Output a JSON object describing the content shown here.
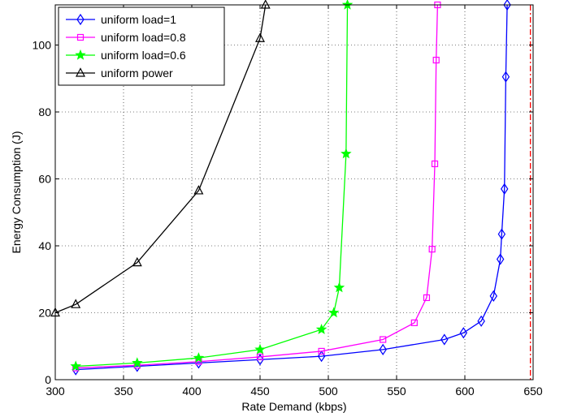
{
  "chart_data": {
    "type": "line",
    "xlabel": "Rate Demand (kbps)",
    "ylabel": "Energy Consumption (J)",
    "xlim": [
      300,
      650
    ],
    "ylim": [
      0,
      112
    ],
    "x_ticks": [
      300,
      350,
      400,
      450,
      500,
      550,
      600,
      650
    ],
    "y_ticks": [
      0,
      20,
      40,
      60,
      80,
      100
    ],
    "grid": true,
    "legend_position": "top-left",
    "threshold_line": {
      "x": 648,
      "color": "#ff0000",
      "style": "dash-dot"
    },
    "series": [
      {
        "name": "uniform load=1",
        "color": "#0000ff",
        "marker": "diamond",
        "x": [
          315,
          360,
          405,
          450,
          495,
          540,
          585,
          599,
          612,
          621,
          626,
          627,
          629,
          630,
          631
        ],
        "y": [
          3.0,
          4.0,
          5.0,
          6.0,
          7.0,
          9.0,
          12.0,
          14.0,
          17.5,
          25.0,
          36.0,
          43.5,
          57.0,
          90.5,
          112.0
        ]
      },
      {
        "name": "uniform load=0.8",
        "color": "#ff00ff",
        "marker": "square",
        "x": [
          315,
          360,
          405,
          450,
          495,
          540,
          563,
          572,
          576,
          578,
          579,
          580
        ],
        "y": [
          3.5,
          4.3,
          5.4,
          6.8,
          8.5,
          12.0,
          17.0,
          24.5,
          39.0,
          64.5,
          95.5,
          112.0
        ]
      },
      {
        "name": "uniform load=0.6",
        "color": "#00ff00",
        "marker": "star",
        "x": [
          315,
          360,
          405,
          450,
          495,
          504,
          508,
          513,
          514
        ],
        "y": [
          4.0,
          5.0,
          6.5,
          9.0,
          15.0,
          20.0,
          27.5,
          67.5,
          112.0
        ]
      },
      {
        "name": "uniform power",
        "color": "#000000",
        "marker": "triangle",
        "x": [
          300,
          315,
          360,
          405,
          450,
          454
        ],
        "y": [
          20.0,
          22.5,
          35.0,
          56.5,
          102.0,
          112.0
        ]
      }
    ]
  }
}
